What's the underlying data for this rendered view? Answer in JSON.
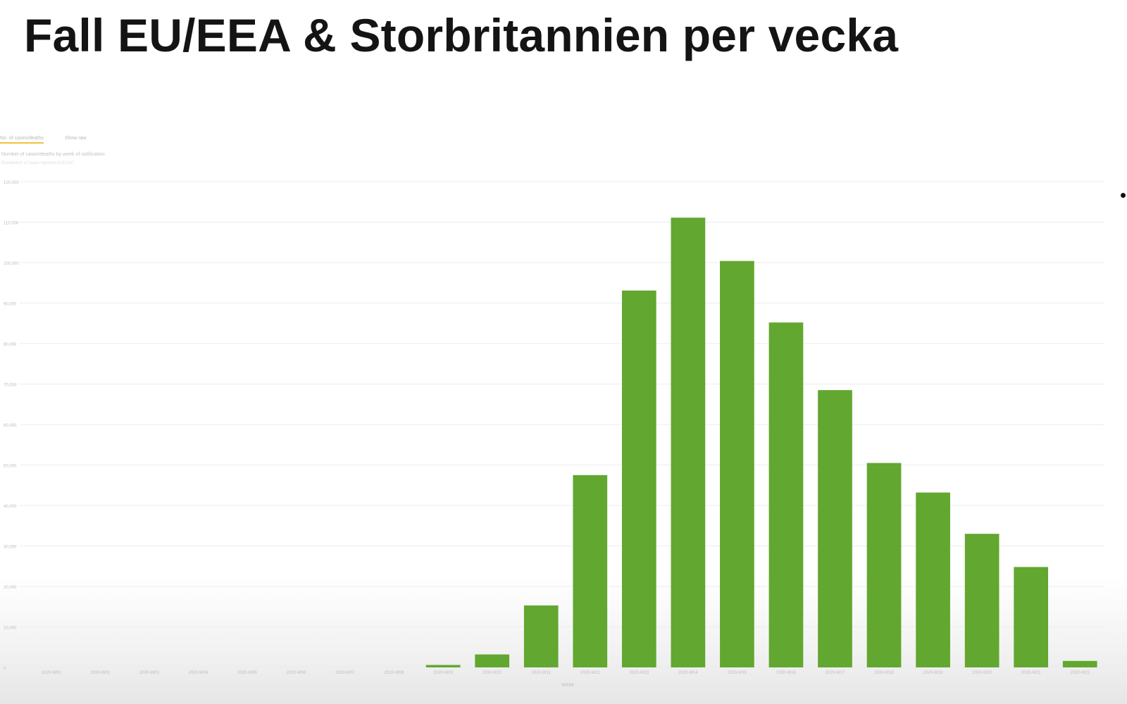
{
  "page": {
    "title": "Fall EU/EEA & Storbritannien per vecka"
  },
  "legend": {
    "items": [
      {
        "label": "No. of cases/deaths",
        "active": true
      },
      {
        "label": "Show raw",
        "active": false
      }
    ]
  },
  "subtitle": "Number of cases/deaths by week of notification",
  "note": "Distribution of cases reported to ECDC",
  "chart_data": {
    "type": "bar",
    "title": "Fall EU/EEA & Storbritannien per vecka",
    "xlabel": "Week",
    "ylabel": "",
    "ylim": [
      0,
      120000
    ],
    "yticks": [
      0,
      10000,
      20000,
      30000,
      40000,
      50000,
      60000,
      70000,
      80000,
      90000,
      100000,
      110000,
      120000
    ],
    "ytick_labels": [
      "0",
      "10,000",
      "20,000",
      "30,000",
      "40,000",
      "50,000",
      "60,000",
      "70,000",
      "80,000",
      "90,000",
      "100,000",
      "110,000",
      "120,000"
    ],
    "grid": true,
    "categories": [
      "2020-W01",
      "2020-W02",
      "2020-W03",
      "2020-W04",
      "2020-W05",
      "2020-W06",
      "2020-W07",
      "2020-W08",
      "2020-W09",
      "2020-W10",
      "2020-W11",
      "2020-W12",
      "2020-W13",
      "2020-W14",
      "2020-W15",
      "2020-W16",
      "2020-W17",
      "2020-W18",
      "2020-W19",
      "2020-W20",
      "2020-W21",
      "2020-W22"
    ],
    "values": [
      0,
      0,
      0,
      0,
      0,
      0,
      0,
      0,
      600,
      3200,
      15300,
      47500,
      93100,
      111100,
      100400,
      85200,
      68500,
      50500,
      43200,
      33000,
      24800,
      1600
    ],
    "colors": {
      "bar": "#62a72f",
      "grid": "#ececec",
      "axis_text": "#bdbdbd"
    }
  }
}
